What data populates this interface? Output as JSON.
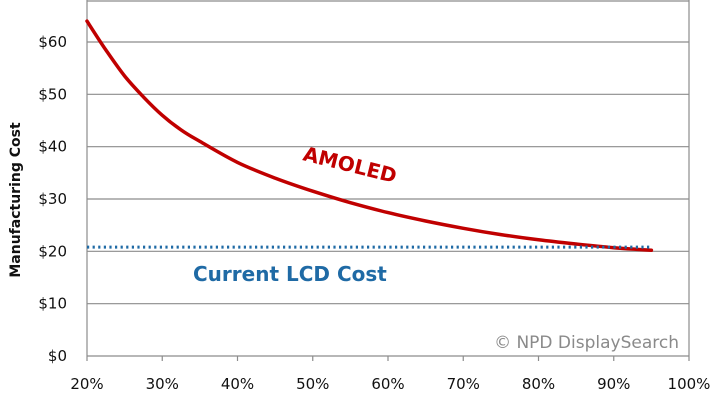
{
  "chart_data": {
    "type": "line",
    "title": "",
    "xlabel": "",
    "ylabel": "Manufacturing Cost",
    "x_tick_labels": [
      "20%",
      "30%",
      "40%",
      "50%",
      "60%",
      "70%",
      "80%",
      "90%",
      "100%"
    ],
    "x_ticks": [
      20,
      30,
      40,
      50,
      60,
      70,
      80,
      90,
      100
    ],
    "y_tick_labels": [
      "$0",
      "$10",
      "$20",
      "$30",
      "$40",
      "$50",
      "$60"
    ],
    "y_ticks": [
      0,
      10,
      20,
      30,
      40,
      50,
      60
    ],
    "xlim": [
      20,
      100
    ],
    "ylim": [
      0,
      65
    ],
    "grid": true,
    "series": [
      {
        "name": "AMOLED",
        "style": "solid",
        "color": "#c00000",
        "x": [
          20,
          22.5,
          25,
          27.5,
          30,
          32.5,
          35,
          40,
          45,
          50,
          55,
          60,
          65,
          70,
          75,
          80,
          85,
          90,
          95
        ],
        "y": [
          64,
          58.5,
          53.5,
          49.5,
          46,
          43.2,
          41,
          37,
          34,
          31.5,
          29.3,
          27.4,
          25.8,
          24.4,
          23.2,
          22.2,
          21.4,
          20.7,
          20.2
        ]
      },
      {
        "name": "Current LCD Cost",
        "style": "dotted",
        "color": "#1f6aa5",
        "x": [
          20,
          95
        ],
        "y": [
          20.8,
          20.8
        ]
      }
    ],
    "annotations": {
      "amoled_label": "AMOLED",
      "lcd_label": "Current LCD Cost",
      "source": "© NPD DisplaySearch"
    }
  }
}
